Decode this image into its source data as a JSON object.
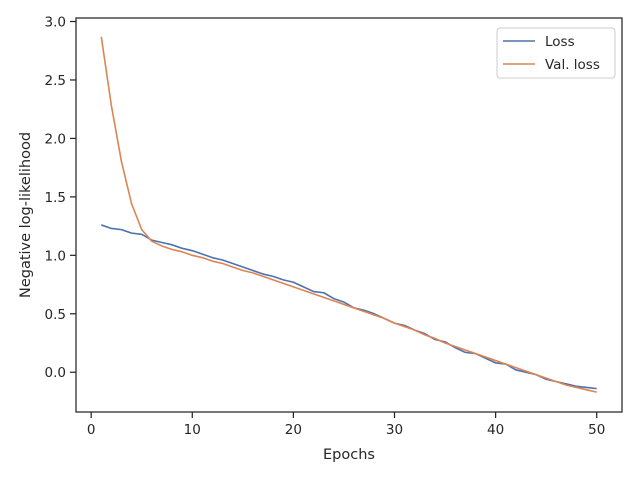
{
  "chart_data": {
    "type": "line",
    "title": "",
    "xlabel": "Epochs",
    "ylabel": "Negative log-likelihood",
    "xlim": [
      -1.5,
      52.5
    ],
    "ylim": [
      -0.34,
      3.03
    ],
    "xticks": [
      0,
      10,
      20,
      30,
      40,
      50
    ],
    "xtick_labels": [
      "0",
      "10",
      "20",
      "30",
      "40",
      "50"
    ],
    "yticks": [
      0.0,
      0.5,
      1.0,
      1.5,
      2.0,
      2.5,
      3.0
    ],
    "ytick_labels": [
      "0.0",
      "0.5",
      "1.0",
      "1.5",
      "2.0",
      "2.5",
      "3.0"
    ],
    "grid": false,
    "legend_position": "upper-right",
    "x": [
      1,
      2,
      3,
      4,
      5,
      6,
      7,
      8,
      9,
      10,
      11,
      12,
      13,
      14,
      15,
      16,
      17,
      18,
      19,
      20,
      21,
      22,
      23,
      24,
      25,
      26,
      27,
      28,
      29,
      30,
      31,
      32,
      33,
      34,
      35,
      36,
      37,
      38,
      39,
      40,
      41,
      42,
      43,
      44,
      45,
      46,
      47,
      48,
      49,
      50
    ],
    "series": [
      {
        "name": "Loss",
        "color": "#4c72b0",
        "values": [
          1.26,
          1.23,
          1.22,
          1.19,
          1.18,
          1.13,
          1.11,
          1.09,
          1.06,
          1.04,
          1.01,
          0.98,
          0.96,
          0.93,
          0.9,
          0.87,
          0.84,
          0.82,
          0.79,
          0.77,
          0.73,
          0.69,
          0.68,
          0.63,
          0.6,
          0.55,
          0.53,
          0.5,
          0.46,
          0.42,
          0.4,
          0.36,
          0.33,
          0.28,
          0.26,
          0.21,
          0.17,
          0.16,
          0.12,
          0.08,
          0.07,
          0.02,
          0.0,
          -0.02,
          -0.06,
          -0.08,
          -0.1,
          -0.12,
          -0.13,
          -0.14
        ]
      },
      {
        "name": "Val. loss",
        "color": "#dd8452",
        "values": [
          2.87,
          2.28,
          1.8,
          1.44,
          1.22,
          1.12,
          1.08,
          1.05,
          1.03,
          1.0,
          0.98,
          0.95,
          0.93,
          0.9,
          0.87,
          0.85,
          0.82,
          0.79,
          0.76,
          0.73,
          0.7,
          0.67,
          0.64,
          0.61,
          0.58,
          0.55,
          0.52,
          0.49,
          0.46,
          0.42,
          0.39,
          0.36,
          0.32,
          0.29,
          0.25,
          0.22,
          0.19,
          0.16,
          0.13,
          0.1,
          0.07,
          0.04,
          0.01,
          -0.02,
          -0.05,
          -0.08,
          -0.11,
          -0.13,
          -0.15,
          -0.17
        ]
      }
    ]
  }
}
